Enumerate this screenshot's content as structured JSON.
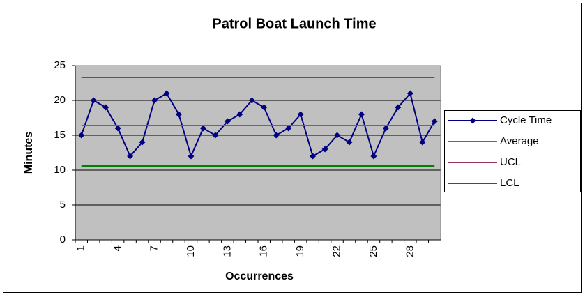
{
  "chart_data": {
    "type": "line",
    "title": "Patrol Boat Launch Time",
    "xlabel": "Occurrences",
    "ylabel": "Minutes",
    "categories": [
      1,
      null,
      null,
      4,
      null,
      null,
      7,
      null,
      null,
      10,
      null,
      null,
      13,
      null,
      null,
      16,
      null,
      null,
      19,
      null,
      null,
      22,
      null,
      null,
      25,
      null,
      null,
      28,
      null,
      null
    ],
    "series": [
      {
        "name": "Cycle Time",
        "color": "#000080",
        "marker": "diamond",
        "values": [
          15,
          20,
          19,
          16,
          12,
          14,
          20,
          21,
          18,
          12,
          16,
          15,
          17,
          18,
          20,
          19,
          15,
          16,
          18,
          12,
          13,
          15,
          14,
          18,
          12,
          16,
          19,
          21,
          14,
          17
        ]
      },
      {
        "name": "Average",
        "color": "#ff00ff",
        "values": [
          16.4,
          16.4,
          16.4,
          16.4,
          16.4,
          16.4,
          16.4,
          16.4,
          16.4,
          16.4,
          16.4,
          16.4,
          16.4,
          16.4,
          16.4,
          16.4,
          16.4,
          16.4,
          16.4,
          16.4,
          16.4,
          16.4,
          16.4,
          16.4,
          16.4,
          16.4,
          16.4,
          16.4,
          16.4,
          16.4
        ]
      },
      {
        "name": "UCL",
        "color": "#993366",
        "values": [
          23.3,
          23.3,
          23.3,
          23.3,
          23.3,
          23.3,
          23.3,
          23.3,
          23.3,
          23.3,
          23.3,
          23.3,
          23.3,
          23.3,
          23.3,
          23.3,
          23.3,
          23.3,
          23.3,
          23.3,
          23.3,
          23.3,
          23.3,
          23.3,
          23.3,
          23.3,
          23.3,
          23.3,
          23.3,
          23.3
        ]
      },
      {
        "name": "LCL",
        "color": "#008000",
        "values": [
          10.6,
          10.6,
          10.6,
          10.6,
          10.6,
          10.6,
          10.6,
          10.6,
          10.6,
          10.6,
          10.6,
          10.6,
          10.6,
          10.6,
          10.6,
          10.6,
          10.6,
          10.6,
          10.6,
          10.6,
          10.6,
          10.6,
          10.6,
          10.6,
          10.6,
          10.6,
          10.6,
          10.6,
          10.6,
          10.6
        ]
      }
    ],
    "ylim": [
      0,
      25
    ],
    "yticks": [
      0,
      5,
      10,
      15,
      20,
      25
    ],
    "grid": true,
    "legend": "right"
  }
}
